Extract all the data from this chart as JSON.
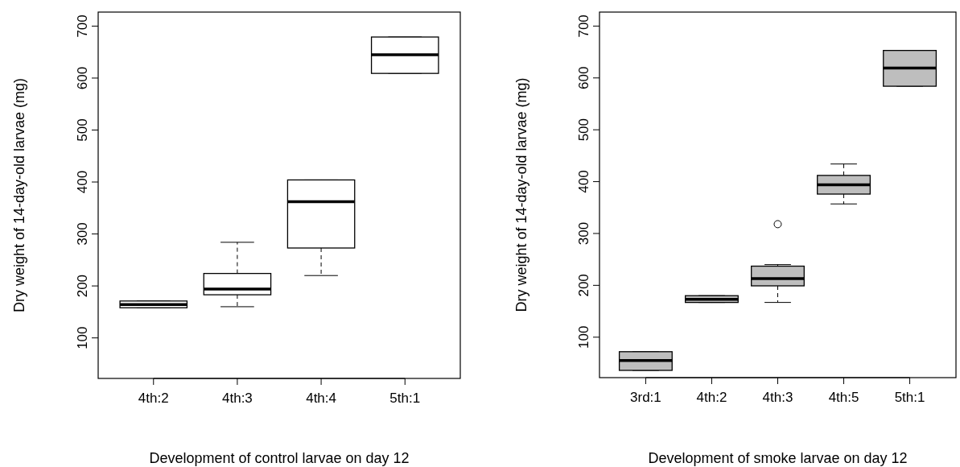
{
  "chart_data": [
    {
      "type": "box",
      "categories": [
        "4th:2",
        "4th:3",
        "4th:4",
        "5th:1"
      ],
      "xlabel": "Development of control larvae on day 12",
      "ylabel": "Dry weight of 14-day-old larvae (mg)",
      "ylim": [
        22,
        727
      ],
      "yticks": [
        100,
        200,
        300,
        400,
        500,
        600,
        700
      ],
      "series": [
        {
          "color": "#ffffff",
          "boxes": [
            {
              "low": 158,
              "q1": 158,
              "median": 164,
              "q3": 171,
              "high": 171
            },
            {
              "low": 160,
              "q1": 183,
              "median": 194,
              "q3": 224,
              "high": 284
            },
            {
              "low": 220,
              "q1": 273,
              "median": 362,
              "q3": 404,
              "high": 404
            },
            {
              "low": 609,
              "q1": 609,
              "median": 645,
              "q3": 679,
              "high": 679
            }
          ]
        }
      ]
    },
    {
      "type": "box",
      "categories": [
        "3rd:1",
        "4th:2",
        "4th:3",
        "4th:5",
        "5th:1"
      ],
      "xlabel": "Development of smoke larvae on day 12",
      "ylabel": "Dry weight of 14-day-old larvae (mg)",
      "ylim": [
        22,
        727
      ],
      "yticks": [
        100,
        200,
        300,
        400,
        500,
        600,
        700
      ],
      "series": [
        {
          "color": "#bebebe",
          "boxes": [
            {
              "low": 36,
              "q1": 36,
              "median": 55,
              "q3": 72,
              "high": 72
            },
            {
              "low": 167,
              "q1": 167,
              "median": 173,
              "q3": 180,
              "high": 180
            },
            {
              "low": 167,
              "q1": 199,
              "median": 213,
              "q3": 237,
              "high": 240,
              "outliers": [
                318
              ]
            },
            {
              "low": 357,
              "q1": 376,
              "median": 394,
              "q3": 412,
              "high": 434
            },
            {
              "low": 584,
              "q1": 584,
              "median": 619,
              "q3": 653,
              "high": 653
            }
          ]
        }
      ]
    }
  ]
}
